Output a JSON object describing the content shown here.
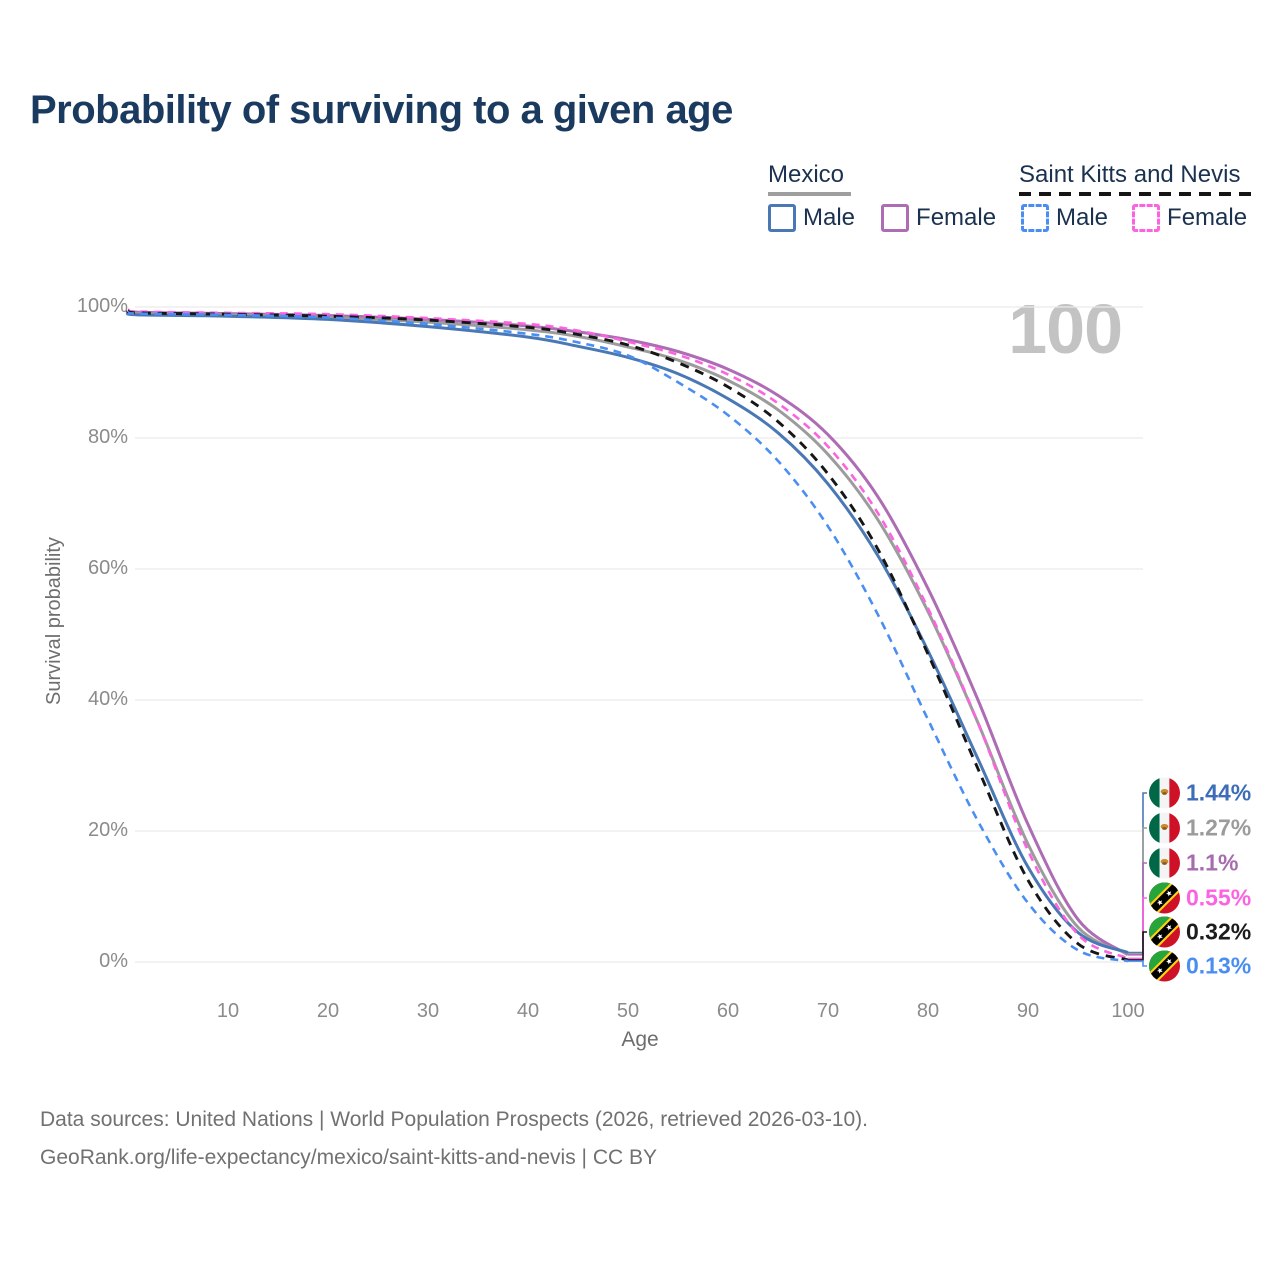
{
  "title": "Probability of surviving to a given age",
  "watermark": "100",
  "legend": {
    "groups": [
      {
        "country": "Mexico",
        "underline": "solid",
        "entries": [
          {
            "label": "Male"
          },
          {
            "label": "Female"
          }
        ]
      },
      {
        "country": "Saint Kitts and Nevis",
        "underline": "dashed",
        "entries": [
          {
            "label": "Male"
          },
          {
            "label": "Female"
          }
        ]
      }
    ]
  },
  "axes": {
    "y_title": "Survival probability",
    "y_ticks": [
      "100%",
      "80%",
      "60%",
      "40%",
      "20%",
      "0%"
    ],
    "x_title": "Age",
    "x_ticks": [
      "10",
      "20",
      "30",
      "40",
      "50",
      "60",
      "70",
      "80",
      "90",
      "100"
    ]
  },
  "footer": {
    "line1": "Data sources: United Nations | World Population Prospects (2026, retrieved 2026-03-10).",
    "line2": "GeoRank.org/life-expectancy/mexico/saint-kitts-and-nevis | CC BY"
  },
  "colors": {
    "title_navy": "#1b3a5f",
    "gridline": "#e9e9e9",
    "mexico_male": "#4a78b5",
    "mexico_female": "#ad6cb4",
    "mexico_both": "#9c9c9c",
    "skn_male": "#4b8ef2",
    "skn_female": "#fb63e1",
    "skn_both": "#161616"
  },
  "chart_data": {
    "type": "line",
    "title": "Probability of surviving to a given age",
    "xlabel": "Age",
    "ylabel": "Survival probability",
    "xlim": [
      0,
      100
    ],
    "ylim": [
      0,
      100
    ],
    "grid": "horizontal",
    "x": [
      0,
      1,
      10,
      20,
      30,
      40,
      45,
      50,
      55,
      60,
      65,
      70,
      75,
      80,
      85,
      90,
      95,
      100
    ],
    "series": [
      {
        "name": "Mexico Female",
        "color": "#ad6cb4",
        "dash": null,
        "width": 3,
        "end_label_index": 2,
        "values": [
          99.5,
          99.2,
          99.0,
          98.7,
          98.1,
          97.1,
          96.2,
          95.0,
          93.2,
          90.5,
          86.5,
          80.5,
          71.0,
          57.0,
          40.0,
          21.0,
          6.5,
          1.1
        ]
      },
      {
        "name": "Mexico Both sexes",
        "color": "#9c9c9c",
        "dash": null,
        "width": 3,
        "end_label_index": 1,
        "values": [
          99.3,
          99.0,
          98.8,
          98.4,
          97.7,
          96.5,
          95.5,
          93.9,
          91.9,
          88.8,
          84.3,
          77.5,
          67.5,
          53.5,
          36.5,
          18.0,
          5.3,
          1.27
        ]
      },
      {
        "name": "Mexico Male",
        "color": "#4a78b5",
        "dash": null,
        "width": 3,
        "end_label_index": 0,
        "values": [
          99.1,
          98.8,
          98.6,
          98.1,
          97.0,
          95.4,
          94.0,
          92.3,
          89.8,
          86.0,
          80.8,
          73.0,
          62.0,
          47.5,
          31.0,
          14.5,
          4.5,
          1.44
        ]
      },
      {
        "name": "Saint Kitts and Nevis Female",
        "color": "#fb63e1",
        "dash": "8 6",
        "width": 2.6,
        "end_label_index": 3,
        "values": [
          99.6,
          99.3,
          99.1,
          98.9,
          98.3,
          97.4,
          96.4,
          94.7,
          92.7,
          89.7,
          85.3,
          78.7,
          68.5,
          54.0,
          36.5,
          17.0,
          4.2,
          0.55
        ]
      },
      {
        "name": "Saint Kitts and Nevis Both sexes",
        "color": "#161616",
        "dash": "9 7",
        "width": 2.9,
        "end_label_index": 4,
        "values": [
          99.4,
          99.1,
          98.9,
          98.6,
          98.0,
          96.9,
          95.8,
          94.2,
          91.5,
          87.8,
          82.5,
          74.5,
          63.0,
          47.0,
          29.5,
          12.5,
          2.8,
          0.32
        ]
      },
      {
        "name": "Saint Kitts and Nevis Male",
        "color": "#4b8ef2",
        "dash": "8 6",
        "width": 2.6,
        "end_label_index": 5,
        "values": [
          99.2,
          99.0,
          98.8,
          98.4,
          97.4,
          95.9,
          94.6,
          92.6,
          88.5,
          83.5,
          76.5,
          66.5,
          53.0,
          37.0,
          21.5,
          9.0,
          1.8,
          0.13
        ]
      }
    ],
    "end_labels": [
      {
        "text": "1.44%",
        "color": "#3d6db6",
        "flag": "mexico"
      },
      {
        "text": "1.27%",
        "color": "#9b9b9b",
        "flag": "mexico"
      },
      {
        "text": "1.1%",
        "color": "#a76cae",
        "flag": "mexico"
      },
      {
        "text": "0.55%",
        "color": "#fb63e1",
        "flag": "saint-kitts-and-nevis"
      },
      {
        "text": "0.32%",
        "color": "#1c1c1c",
        "flag": "saint-kitts-and-nevis"
      },
      {
        "text": "0.13%",
        "color": "#4b8ef2",
        "flag": "saint-kitts-and-nevis"
      }
    ]
  }
}
